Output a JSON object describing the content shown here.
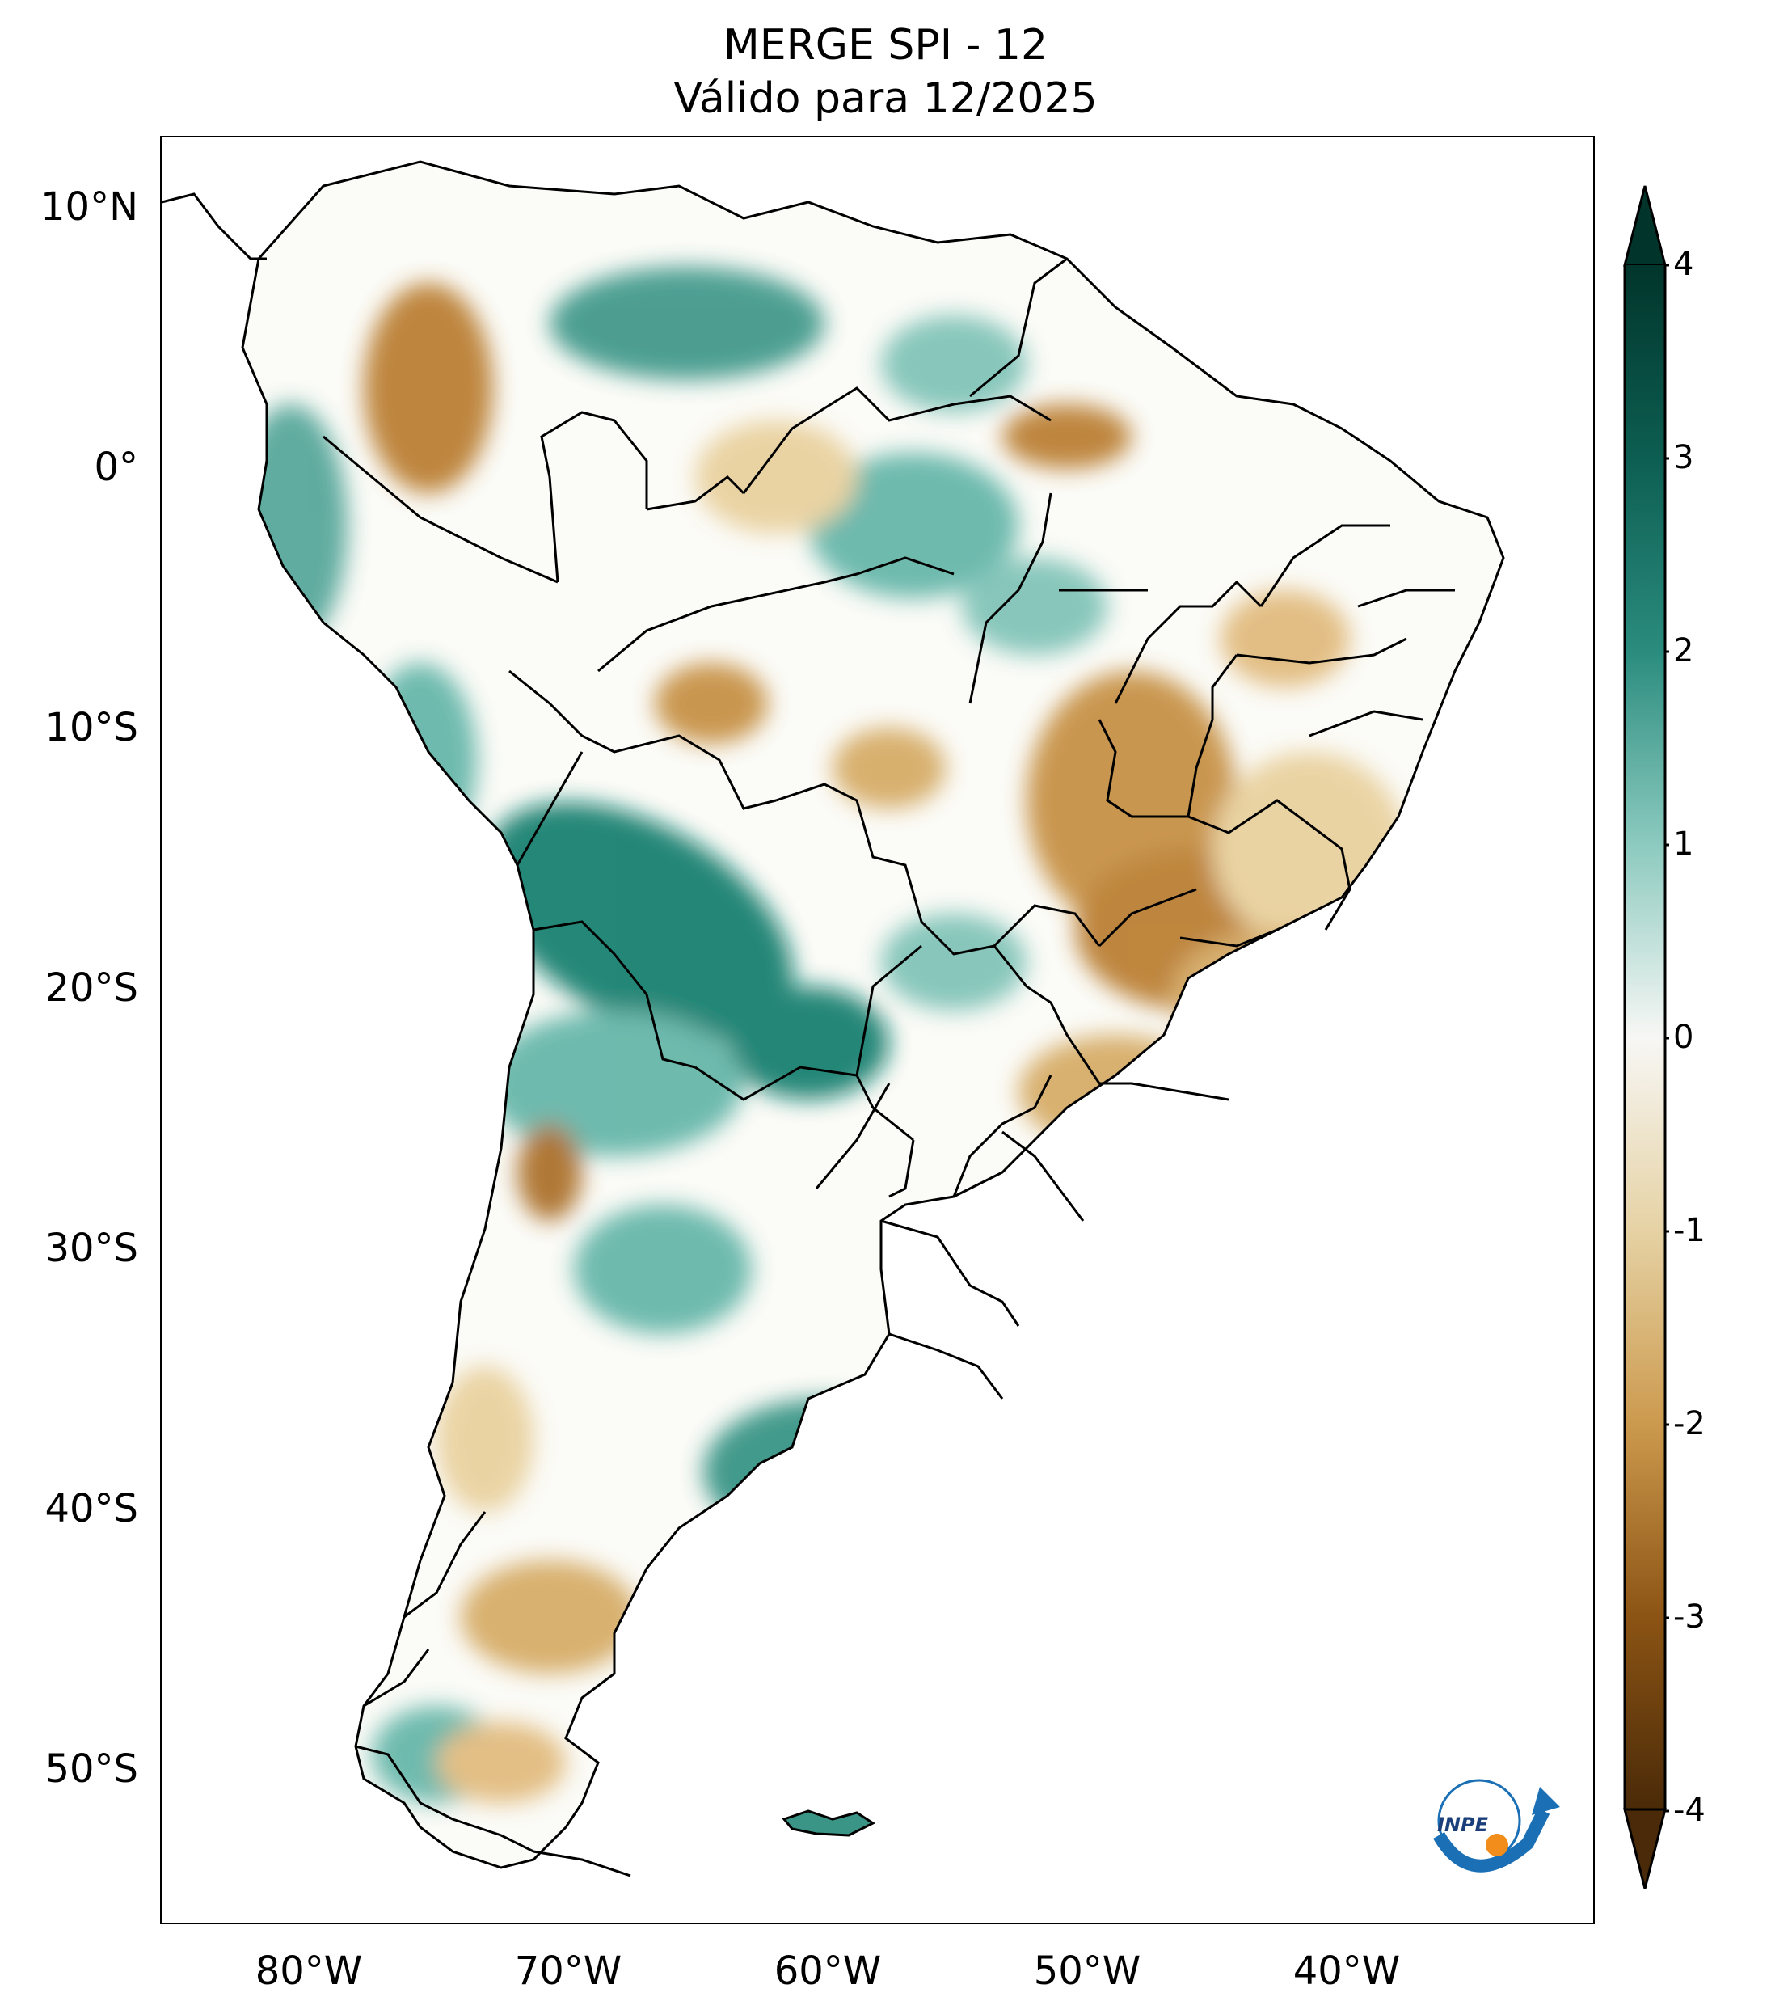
{
  "title": {
    "line1": "MERGE   SPI - 12",
    "line2": "Válido para 12/2025"
  },
  "map": {
    "region": "South America",
    "variable": "SPI - 12",
    "lat_ticks": [
      "10°N",
      "0°",
      "10°S",
      "20°S",
      "30°S",
      "40°S",
      "50°S"
    ],
    "lon_ticks": [
      "80°W",
      "70°W",
      "60°W",
      "50°W",
      "40°W"
    ],
    "lat_range": [
      -56,
      12
    ],
    "lon_range": [
      -84,
      -30
    ],
    "colormap": "BrBG",
    "colors": {
      "very_wet": "#01352b",
      "wet": "#0f7a6a",
      "moderately_wet": "#5fb3a6",
      "neutral": "#ffffff",
      "moderately_dry": "#e8cf9a",
      "dry": "#b8792a",
      "very_dry": "#4a2a08",
      "border": "#000000"
    }
  },
  "colorbar": {
    "min": -4,
    "max": 4,
    "extend": "both",
    "tick_labels": [
      "4",
      "3",
      "2",
      "1",
      "0",
      "-1",
      "-2",
      "-3",
      "-4"
    ]
  },
  "logo": {
    "text": "INPE",
    "icon": "inpe-logo-icon"
  }
}
